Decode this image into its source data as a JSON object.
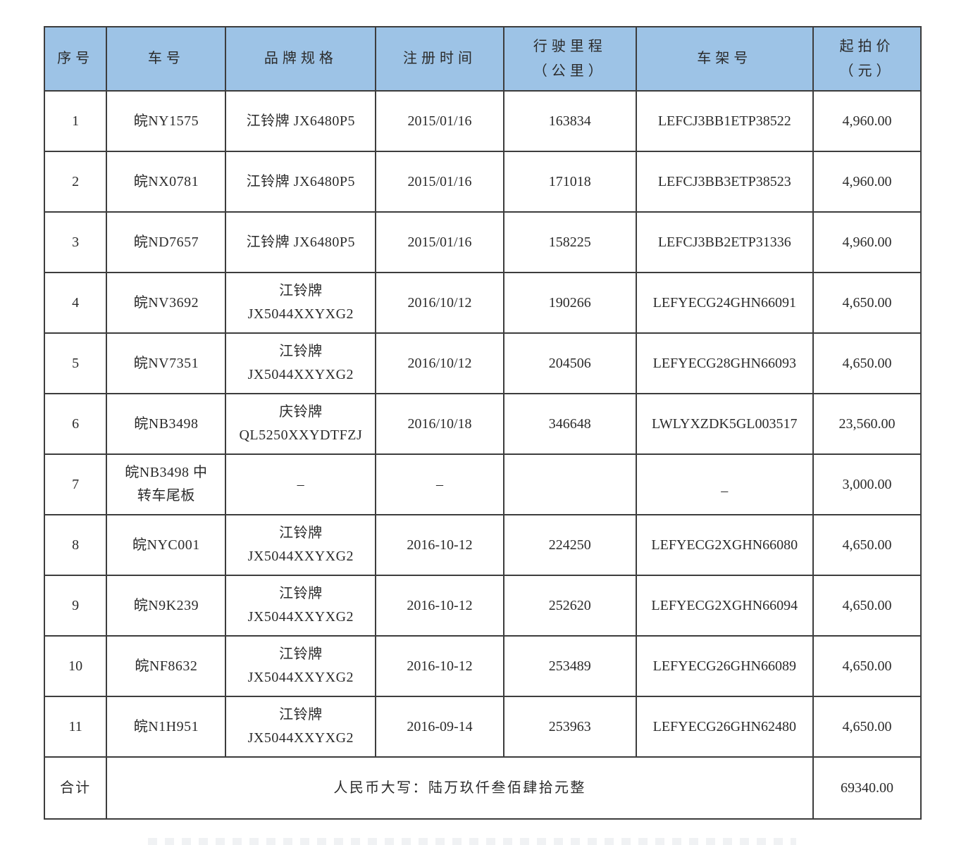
{
  "colors": {
    "header_bg": "#9dc3e6",
    "border": "#3d3d3d",
    "text": "#2b2b2b"
  },
  "table": {
    "columns": [
      {
        "key": "no",
        "header_lines": [
          "序号"
        ]
      },
      {
        "key": "plate",
        "header_lines": [
          "车号"
        ]
      },
      {
        "key": "brand",
        "header_lines": [
          "品牌规格"
        ]
      },
      {
        "key": "reg",
        "header_lines": [
          "注册时间"
        ]
      },
      {
        "key": "mileage",
        "header_lines": [
          "行驶里程",
          "（公里）"
        ]
      },
      {
        "key": "vin",
        "header_lines": [
          "车架号"
        ]
      },
      {
        "key": "price",
        "header_lines": [
          "起拍价",
          "（元）"
        ]
      }
    ],
    "rows": [
      {
        "no": "1",
        "plate": [
          "皖NY1575"
        ],
        "brand": [
          "江铃牌 JX6480P5"
        ],
        "reg": "2015/01/16",
        "mileage": "163834",
        "vin": "LEFCJ3BB1ETP38522",
        "price": "4,960.00"
      },
      {
        "no": "2",
        "plate": [
          "皖NX0781"
        ],
        "brand": [
          "江铃牌 JX6480P5"
        ],
        "reg": "2015/01/16",
        "mileage": "171018",
        "vin": "LEFCJ3BB3ETP38523",
        "price": "4,960.00"
      },
      {
        "no": "3",
        "plate": [
          "皖ND7657"
        ],
        "brand": [
          "江铃牌 JX6480P5"
        ],
        "reg": "2015/01/16",
        "mileage": "158225",
        "vin": "LEFCJ3BB2ETP31336",
        "price": "4,960.00"
      },
      {
        "no": "4",
        "plate": [
          "皖NV3692"
        ],
        "brand": [
          "江铃牌",
          "JX5044XXYXG2"
        ],
        "reg": "2016/10/12",
        "mileage": "190266",
        "vin": "LEFYECG24GHN66091",
        "price": "4,650.00"
      },
      {
        "no": "5",
        "plate": [
          "皖NV7351"
        ],
        "brand": [
          "江铃牌",
          "JX5044XXYXG2"
        ],
        "reg": "2016/10/12",
        "mileage": "204506",
        "vin": "LEFYECG28GHN66093",
        "price": "4,650.00"
      },
      {
        "no": "6",
        "plate": [
          "皖NB3498"
        ],
        "brand": [
          "庆铃牌",
          "QL5250XXYDTFZJ"
        ],
        "reg": "2016/10/18",
        "mileage": "346648",
        "vin": "LWLYXZDK5GL003517",
        "price": "23,560.00"
      },
      {
        "no": "7",
        "plate": [
          "皖NB3498 中",
          "转车尾板"
        ],
        "brand": [
          "–"
        ],
        "reg": "–",
        "mileage": "",
        "vin": "–",
        "price": "3,000.00"
      },
      {
        "no": "8",
        "plate": [
          "皖NYC001"
        ],
        "brand": [
          "江铃牌",
          "JX5044XXYXG2"
        ],
        "reg": "2016-10-12",
        "mileage": "224250",
        "vin": "LEFYECG2XGHN66080",
        "price": "4,650.00"
      },
      {
        "no": "9",
        "plate": [
          "皖N9K239"
        ],
        "brand": [
          "江铃牌",
          "JX5044XXYXG2"
        ],
        "reg": "2016-10-12",
        "mileage": "252620",
        "vin": "LEFYECG2XGHN66094",
        "price": "4,650.00"
      },
      {
        "no": "10",
        "plate": [
          "皖NF8632"
        ],
        "brand": [
          "江铃牌",
          "JX5044XXYXG2"
        ],
        "reg": "2016-10-12",
        "mileage": "253489",
        "vin": "LEFYECG26GHN66089",
        "price": "4,650.00"
      },
      {
        "no": "11",
        "plate": [
          "皖N1H951"
        ],
        "brand": [
          "江铃牌",
          "JX5044XXYXG2"
        ],
        "reg": "2016-09-14",
        "mileage": "253963",
        "vin": "LEFYECG26GHN62480",
        "price": "4,650.00"
      }
    ],
    "total_row": {
      "label": "合计",
      "amount_in_words": "人民币大写：陆万玖仟叁佰肆拾元整",
      "amount": "69340.00"
    }
  }
}
